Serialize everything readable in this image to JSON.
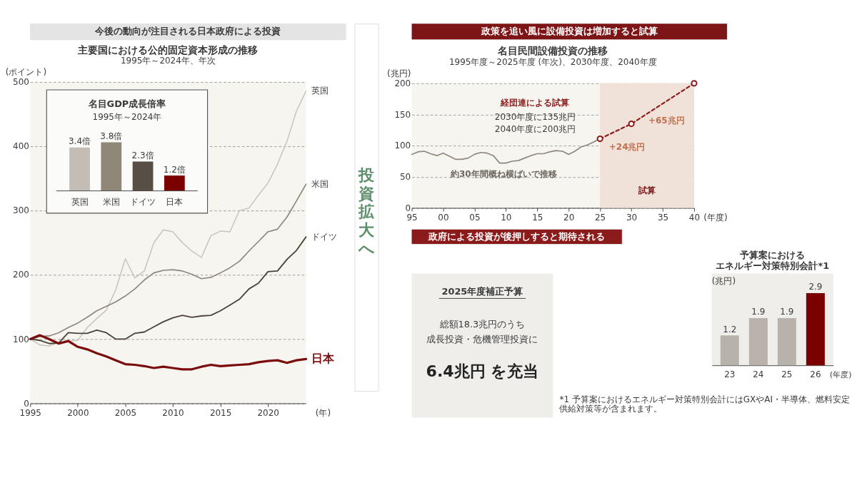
{
  "chart_data": [
    {
      "type": "line",
      "title": "主要国における公的固定資本形成の推移",
      "subtitle": "1995年～2024年、年次",
      "ylabel": "(ポイント)",
      "xlabel": "(年)",
      "x": [
        1995,
        1996,
        1997,
        1998,
        1999,
        2000,
        2001,
        2002,
        2003,
        2004,
        2005,
        2006,
        2007,
        2008,
        2009,
        2010,
        2011,
        2012,
        2013,
        2014,
        2015,
        2016,
        2017,
        2018,
        2019,
        2020,
        2021,
        2022,
        2023,
        2024
      ],
      "xlim": [
        1995,
        2024
      ],
      "xticks": [
        1995,
        2000,
        2005,
        2010,
        2015,
        2020
      ],
      "ylim": [
        0,
        500
      ],
      "yticks": [
        0,
        100,
        200,
        300,
        400,
        500
      ],
      "grid": "y",
      "annotations": [
        "今後の動向が注目される日本政府による投資"
      ],
      "series": [
        {
          "name": "英国",
          "color": "#c8c3bc",
          "values": [
            100,
            91,
            89,
            95,
            97,
            98,
            118,
            132,
            145,
            177,
            225,
            195,
            206,
            250,
            270,
            267,
            250,
            237,
            227,
            261,
            268,
            267,
            300,
            304,
            324,
            343,
            372,
            408,
            455,
            486
          ]
        },
        {
          "name": "米国",
          "color": "#8f877c",
          "values": [
            100,
            104,
            105,
            110,
            118,
            125,
            134,
            144,
            151,
            158,
            167,
            178,
            192,
            203,
            207,
            208,
            206,
            201,
            194,
            196,
            203,
            211,
            221,
            237,
            252,
            267,
            271,
            290,
            315,
            341
          ]
        },
        {
          "name": "ドイツ",
          "color": "#4b4339",
          "values": [
            100,
            98,
            93,
            94,
            110,
            109,
            109,
            114,
            110,
            100,
            100,
            109,
            111,
            119,
            127,
            133,
            137,
            134,
            136,
            137,
            144,
            153,
            162,
            178,
            187,
            205,
            206,
            224,
            238,
            259
          ]
        },
        {
          "name": "日本",
          "color": "#7b0c0c",
          "values": [
            100,
            106,
            100,
            93,
            97,
            88,
            84,
            78,
            73,
            67,
            61,
            60,
            58,
            55,
            57,
            55,
            53,
            53,
            57,
            60,
            58,
            59,
            60,
            61,
            64,
            66,
            67,
            63,
            67,
            69
          ]
        }
      ]
    },
    {
      "type": "bar",
      "title": "名目GDP成長倍率",
      "subtitle": "1995年～2024年",
      "categories": [
        "英国",
        "米国",
        "ドイツ",
        "日本"
      ],
      "values": [
        3.4,
        3.8,
        2.3,
        1.2
      ],
      "value_labels": [
        "3.4倍",
        "3.8倍",
        "2.3倍",
        "1.2倍"
      ],
      "colors": [
        "#c3bdb6",
        "#908779",
        "#574e45",
        "#7b0000"
      ]
    },
    {
      "type": "other",
      "annotations": [
        "投資拡大へ"
      ]
    },
    {
      "type": "line",
      "title": "名目民間設備投資の推移",
      "subtitle": "1995年度～2025年度 (年次)、2030年度、2040年度",
      "ylabel": "(兆円)",
      "xlabel": "(年度)",
      "xlim": [
        1995,
        2040
      ],
      "xticks": [
        {
          "value": 1995,
          "label": "95"
        },
        {
          "value": 2000,
          "label": "00"
        },
        {
          "value": 2005,
          "label": "05"
        },
        {
          "value": 2010,
          "label": "10"
        },
        {
          "value": 2015,
          "label": "15"
        },
        {
          "value": 2020,
          "label": "20"
        },
        {
          "value": 2025,
          "label": "25"
        },
        {
          "value": 2030,
          "label": "30"
        },
        {
          "value": 2035,
          "label": "35"
        },
        {
          "value": 2040,
          "label": "40"
        }
      ],
      "ylim": [
        0,
        200
      ],
      "yticks": [
        0,
        50,
        100,
        150,
        200
      ],
      "grid": "y",
      "bands": [
        {
          "axis": "x",
          "from": 2025,
          "to": 2040,
          "label": "試算",
          "color": "#f0e2d9"
        }
      ],
      "annotations": [
        "政策を追い風に設備投資は増加すると試算",
        "経団連による試算",
        "2030年度に135兆円",
        "2040年度に200兆円",
        "約30年間概ね横ばいで推移",
        "+24兆円",
        "+65兆円",
        "政府による投資が後押しすると期待される"
      ],
      "series": [
        {
          "color": "#8f877c",
          "x": [
            1995,
            1996,
            1997,
            1998,
            1999,
            2000,
            2001,
            2002,
            2003,
            2004,
            2005,
            2006,
            2007,
            2008,
            2009,
            2010,
            2011,
            2012,
            2013,
            2014,
            2015,
            2016,
            2017,
            2018,
            2019,
            2020,
            2021,
            2022,
            2023,
            2024,
            2025
          ],
          "values": [
            86,
            90,
            91,
            87,
            84,
            88,
            83,
            78,
            78,
            80,
            86,
            89,
            88,
            84,
            72,
            72,
            75,
            76,
            80,
            84,
            87,
            87,
            90,
            92,
            91,
            86,
            91,
            98,
            101,
            106,
            111
          ]
        },
        {
          "color": "#8b1a1a",
          "x": [
            2025,
            2030,
            2040
          ],
          "values": [
            111,
            135,
            200
          ],
          "line_style": "dashed",
          "marker": "circle"
        }
      ]
    },
    {
      "type": "other",
      "title": "2025年度補正予算",
      "annotations": [
        "総額18.3兆円のうち",
        "成長投資・危機管理投資に",
        "6.4兆円 を充当"
      ]
    },
    {
      "type": "bar",
      "title": "予算案におけるエネルギー対策特別会計*1",
      "ylabel": "(兆円)",
      "xlabel": "(年度)",
      "categories": [
        "23",
        "24",
        "25",
        "26"
      ],
      "values": [
        1.2,
        1.9,
        1.9,
        2.9
      ],
      "colors": [
        "#b8b2ab",
        "#b8b2ab",
        "#b8b2ab",
        "#7b0000"
      ],
      "data_labels": true,
      "annotations": [
        "*1 予算案におけるエネルギー対策特別会計にはGXやAI・半導体、燃料安定供給対策等が含まれます。"
      ]
    }
  ]
}
